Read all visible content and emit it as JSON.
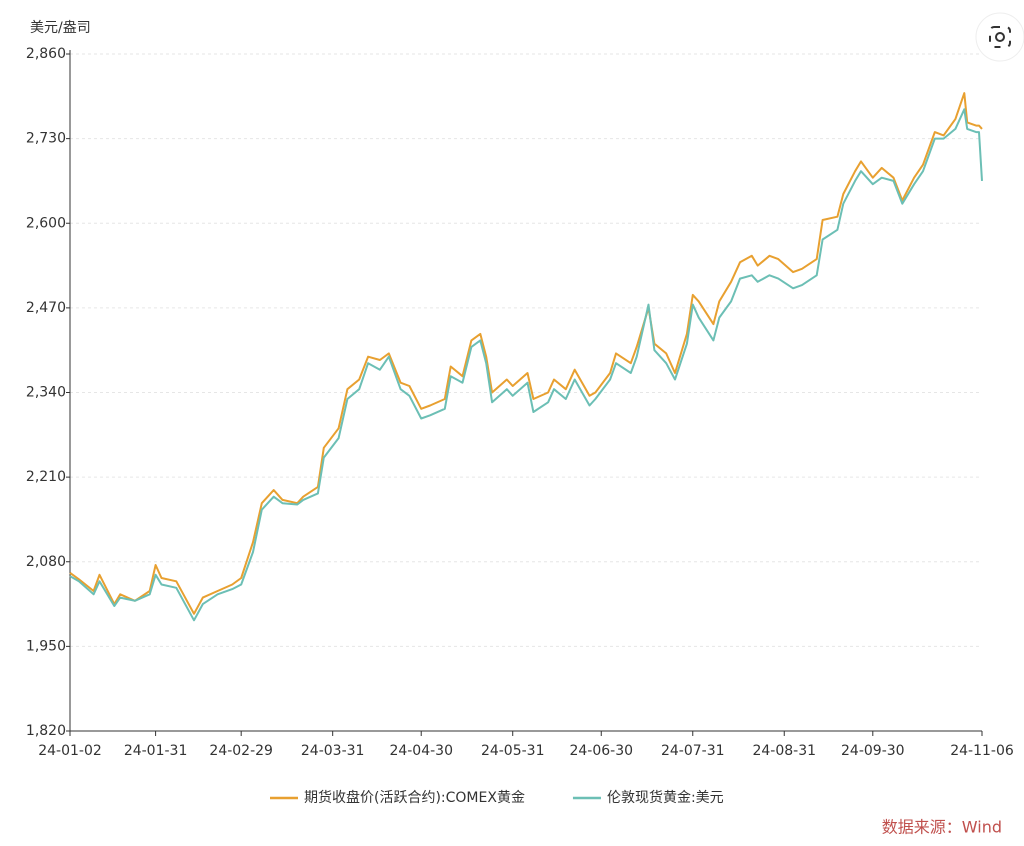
{
  "chart_data": {
    "type": "line",
    "y_label": "美元/盎司",
    "source": "数据来源：Wind",
    "x": [
      "24-01-02",
      "24-01-05",
      "24-01-10",
      "24-01-12",
      "24-01-17",
      "24-01-19",
      "24-01-24",
      "24-01-29",
      "24-01-31",
      "24-02-02",
      "24-02-07",
      "24-02-13",
      "24-02-16",
      "24-02-21",
      "24-02-26",
      "24-02-29",
      "24-03-04",
      "24-03-07",
      "24-03-11",
      "24-03-14",
      "24-03-19",
      "24-03-21",
      "24-03-26",
      "24-03-28",
      "24-04-02",
      "24-04-05",
      "24-04-09",
      "24-04-12",
      "24-04-16",
      "24-04-19",
      "24-04-23",
      "24-04-26",
      "24-04-30",
      "24-05-03",
      "24-05-08",
      "24-05-10",
      "24-05-14",
      "24-05-17",
      "24-05-20",
      "24-05-22",
      "24-05-24",
      "24-05-29",
      "24-05-31",
      "24-06-05",
      "24-06-07",
      "24-06-12",
      "24-06-14",
      "24-06-18",
      "24-06-21",
      "24-06-26",
      "24-06-28",
      "24-07-03",
      "24-07-05",
      "24-07-10",
      "24-07-12",
      "24-07-16",
      "24-07-18",
      "24-07-22",
      "24-07-25",
      "24-07-29",
      "24-07-31",
      "24-08-02",
      "24-08-07",
      "24-08-09",
      "24-08-13",
      "24-08-16",
      "24-08-20",
      "24-08-22",
      "24-08-26",
      "24-08-29",
      "24-09-03",
      "24-09-06",
      "24-09-11",
      "24-09-13",
      "24-09-18",
      "24-09-20",
      "24-09-24",
      "24-09-26",
      "24-09-30",
      "24-10-03",
      "24-10-07",
      "24-10-10",
      "24-10-14",
      "24-10-17",
      "24-10-21",
      "24-10-24",
      "24-10-28",
      "24-10-31",
      "24-11-01",
      "24-11-04",
      "24-11-05",
      "24-11-06"
    ],
    "series": [
      {
        "name": "期货收盘价(活跃合约):COMEX黄金",
        "color": "#e8a030",
        "values": [
          2063,
          2053,
          2035,
          2060,
          2015,
          2030,
          2020,
          2035,
          2075,
          2055,
          2050,
          2000,
          2025,
          2035,
          2045,
          2055,
          2110,
          2170,
          2190,
          2175,
          2170,
          2180,
          2195,
          2255,
          2285,
          2345,
          2360,
          2395,
          2390,
          2400,
          2355,
          2350,
          2315,
          2320,
          2330,
          2380,
          2365,
          2420,
          2430,
          2395,
          2340,
          2360,
          2350,
          2370,
          2330,
          2340,
          2360,
          2345,
          2375,
          2335,
          2340,
          2370,
          2400,
          2385,
          2410,
          2470,
          2415,
          2400,
          2370,
          2430,
          2490,
          2480,
          2445,
          2480,
          2510,
          2540,
          2550,
          2535,
          2550,
          2545,
          2525,
          2530,
          2545,
          2605,
          2610,
          2645,
          2680,
          2695,
          2670,
          2685,
          2670,
          2635,
          2670,
          2690,
          2740,
          2735,
          2760,
          2800,
          2755,
          2750,
          2750,
          2745
        ]
      },
      {
        "name": "伦敦现货黄金:美元",
        "color": "#6cbfb5",
        "values": [
          2058,
          2050,
          2030,
          2050,
          2012,
          2025,
          2020,
          2030,
          2060,
          2045,
          2040,
          1990,
          2015,
          2030,
          2038,
          2045,
          2095,
          2160,
          2180,
          2170,
          2168,
          2175,
          2185,
          2240,
          2270,
          2330,
          2345,
          2385,
          2375,
          2395,
          2345,
          2335,
          2300,
          2305,
          2315,
          2365,
          2355,
          2410,
          2420,
          2385,
          2325,
          2345,
          2335,
          2355,
          2310,
          2325,
          2345,
          2330,
          2360,
          2320,
          2330,
          2360,
          2385,
          2370,
          2395,
          2475,
          2405,
          2385,
          2360,
          2415,
          2475,
          2455,
          2420,
          2455,
          2480,
          2515,
          2520,
          2510,
          2520,
          2515,
          2500,
          2505,
          2520,
          2575,
          2590,
          2630,
          2665,
          2680,
          2660,
          2670,
          2665,
          2630,
          2660,
          2680,
          2730,
          2730,
          2745,
          2775,
          2745,
          2740,
          2740,
          2665
        ]
      }
    ],
    "xlim": [
      "24-01-02",
      "24-11-06"
    ],
    "xticks": [
      "24-01-02",
      "24-01-31",
      "24-02-29",
      "24-03-31",
      "24-04-30",
      "24-05-31",
      "24-06-30",
      "24-07-31",
      "24-08-31",
      "24-09-30",
      "24-11-06"
    ],
    "ylim": [
      1820,
      2860
    ],
    "yticks": [
      {
        "value": 1820,
        "label": "1,820"
      },
      {
        "value": 1950,
        "label": "1,950"
      },
      {
        "value": 2080,
        "label": "2,080"
      },
      {
        "value": 2210,
        "label": "2,210"
      },
      {
        "value": 2340,
        "label": "2,340"
      },
      {
        "value": 2470,
        "label": "2,470"
      },
      {
        "value": 2600,
        "label": "2,600"
      },
      {
        "value": 2730,
        "label": "2,730"
      },
      {
        "value": 2860,
        "label": "2,860"
      }
    ],
    "grid": true
  }
}
